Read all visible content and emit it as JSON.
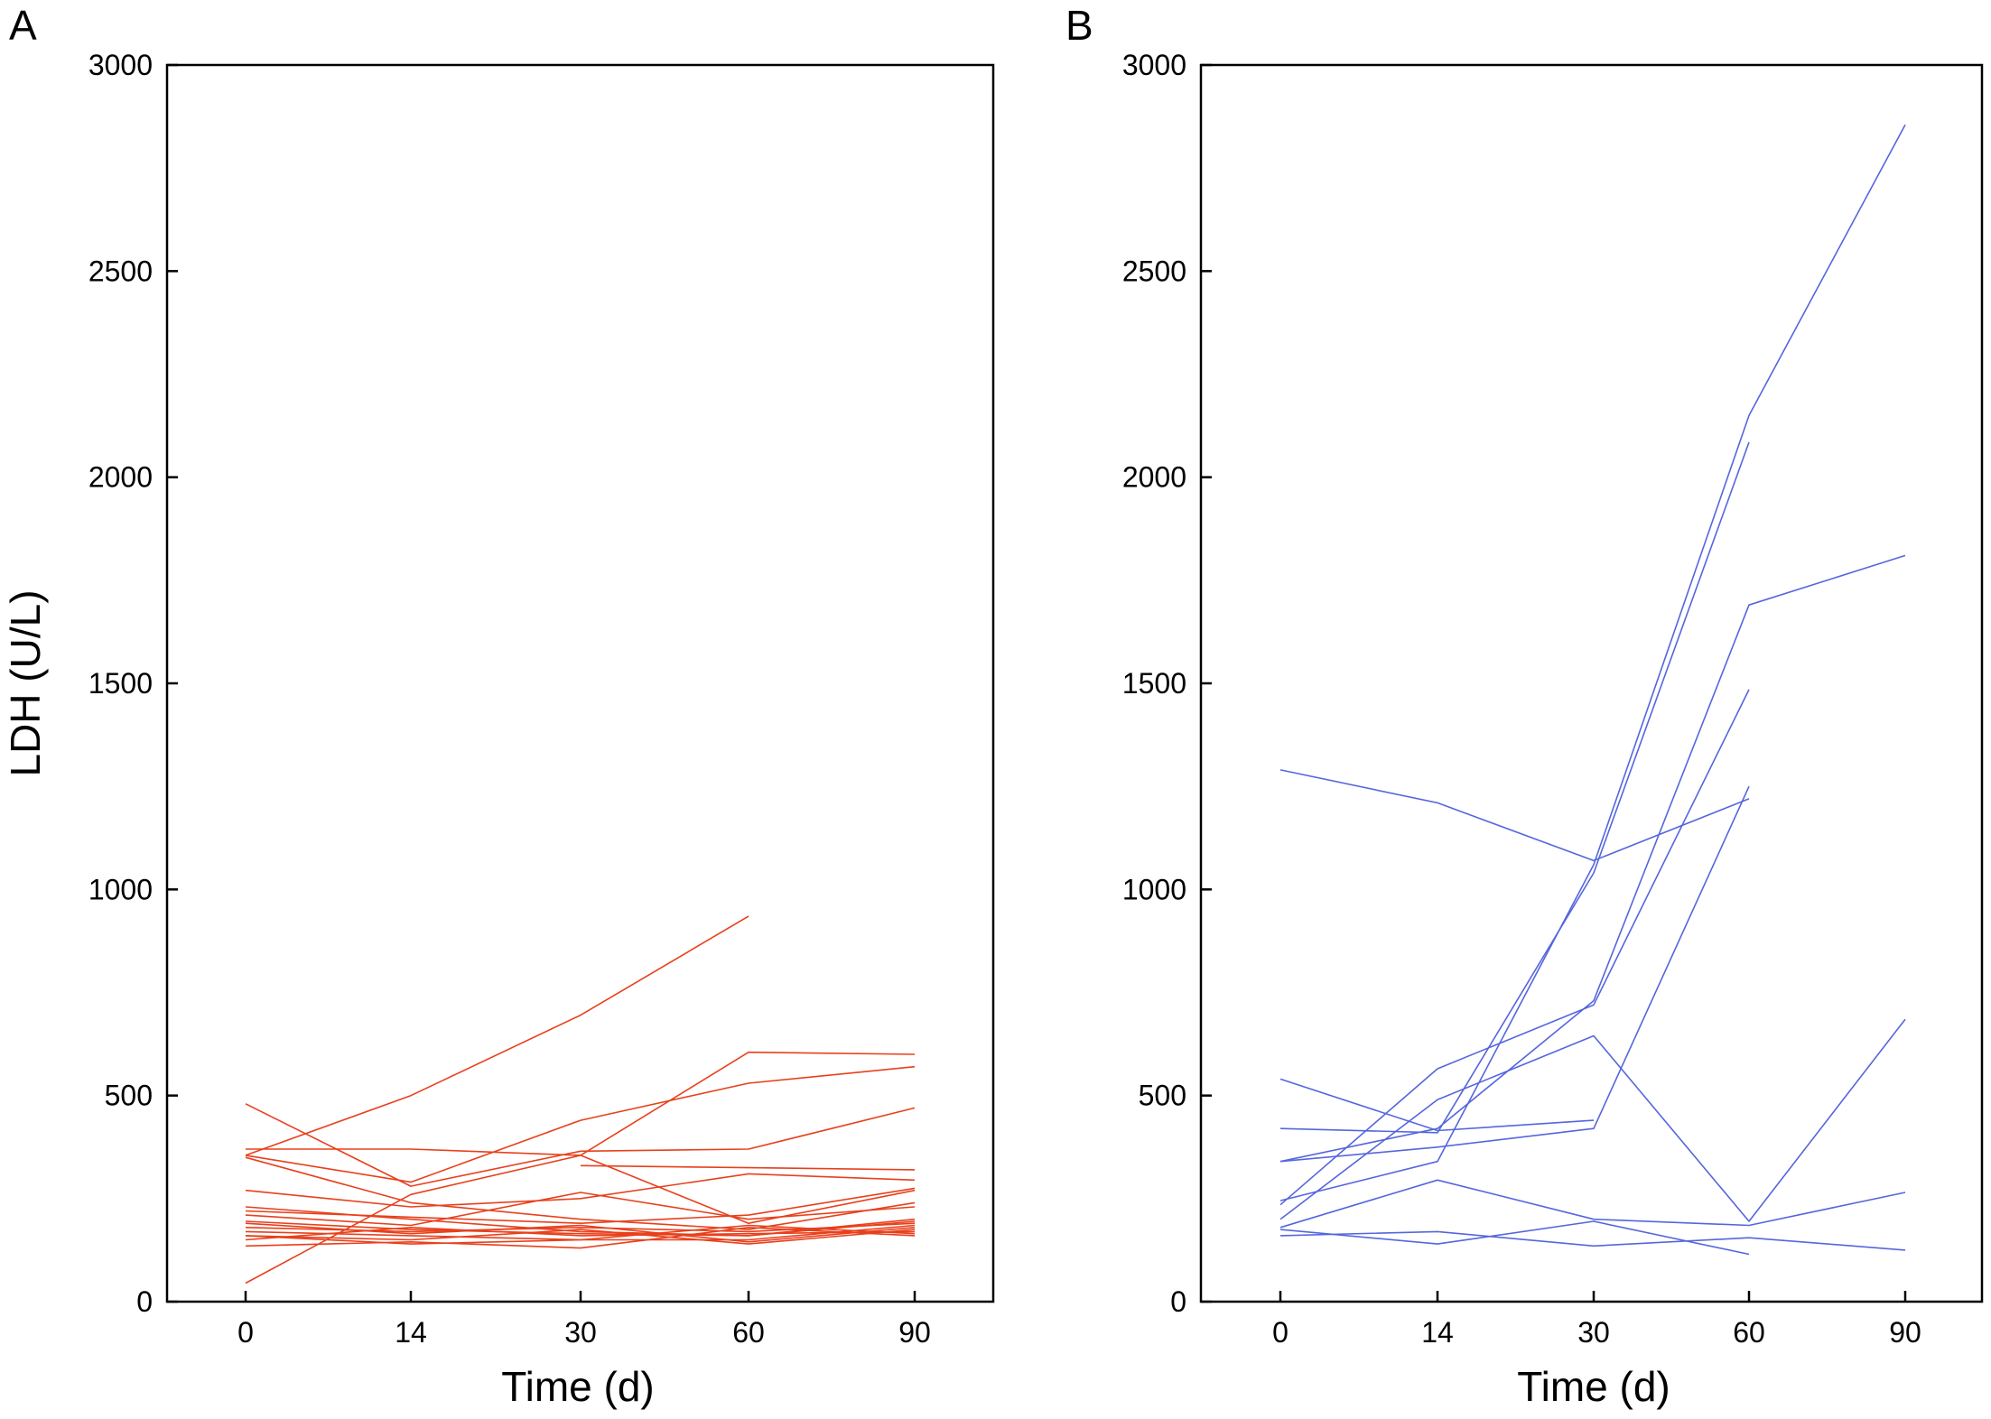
{
  "chart_data": [
    {
      "type": "line",
      "panel_label": "A",
      "xlabel": "Time (d)",
      "ylabel": "LDH (U/L)",
      "x_categories": [
        "0",
        "14",
        "30",
        "60",
        "90"
      ],
      "y_ticks": [
        "0",
        "500",
        "1000",
        "1500",
        "2000",
        "2500",
        "3000"
      ],
      "ylim": [
        0,
        3000
      ],
      "grid": false,
      "color": "#e8401c",
      "series": [
        {
          "x": [
            "0",
            "14",
            "30",
            "60"
          ],
          "y": [
            355,
            500,
            695,
            935
          ]
        },
        {
          "x": [
            "0",
            "14",
            "30",
            "60",
            "90"
          ],
          "y": [
            370,
            370,
            355,
            605,
            600
          ]
        },
        {
          "x": [
            "0",
            "14",
            "30",
            "60",
            "90"
          ],
          "y": [
            355,
            290,
            440,
            530,
            570
          ]
        },
        {
          "x": [
            "0",
            "14",
            "30",
            "60",
            "90"
          ],
          "y": [
            480,
            280,
            365,
            370,
            470
          ]
        },
        {
          "x": [
            "30",
            "60",
            "90"
          ],
          "y": [
            330,
            325,
            320
          ]
        },
        {
          "x": [
            "0",
            "14",
            "30",
            "60",
            "90"
          ],
          "y": [
            270,
            230,
            250,
            310,
            295
          ]
        },
        {
          "x": [
            "0",
            "14",
            "30",
            "60",
            "90"
          ],
          "y": [
            45,
            260,
            355,
            190,
            270
          ]
        },
        {
          "x": [
            "0",
            "14",
            "30",
            "60",
            "90"
          ],
          "y": [
            350,
            240,
            200,
            175,
            240
          ]
        },
        {
          "x": [
            "0",
            "14",
            "30",
            "60",
            "90"
          ],
          "y": [
            220,
            205,
            190,
            210,
            275
          ]
        },
        {
          "x": [
            "0",
            "14",
            "30",
            "60",
            "90"
          ],
          "y": [
            210,
            185,
            265,
            200,
            230
          ]
        },
        {
          "x": [
            "0",
            "14",
            "30",
            "60",
            "90"
          ],
          "y": [
            195,
            175,
            165,
            160,
            200
          ]
        },
        {
          "x": [
            "0",
            "14",
            "30",
            "60",
            "90"
          ],
          "y": [
            180,
            170,
            180,
            170,
            190
          ]
        },
        {
          "x": [
            "0",
            "14",
            "30",
            "60",
            "90"
          ],
          "y": [
            170,
            160,
            150,
            150,
            185
          ]
        },
        {
          "x": [
            "0",
            "14",
            "30",
            "60",
            "90"
          ],
          "y": [
            160,
            150,
            175,
            140,
            175
          ]
        },
        {
          "x": [
            "0",
            "14",
            "30",
            "60",
            "90"
          ],
          "y": [
            150,
            180,
            160,
            165,
            170
          ]
        },
        {
          "x": [
            "0",
            "14",
            "30",
            "60",
            "90"
          ],
          "y": [
            135,
            145,
            130,
            180,
            160
          ]
        },
        {
          "x": [
            "0",
            "14",
            "30",
            "60",
            "90"
          ],
          "y": [
            230,
            200,
            170,
            160,
            195
          ]
        },
        {
          "x": [
            "0",
            "14",
            "30",
            "60",
            "90"
          ],
          "y": [
            190,
            165,
            185,
            145,
            180
          ]
        },
        {
          "x": [
            "0",
            "14",
            "30",
            "60",
            "90"
          ],
          "y": [
            160,
            140,
            150,
            185,
            165
          ]
        }
      ]
    },
    {
      "type": "line",
      "panel_label": "B",
      "xlabel": "Time (d)",
      "ylabel": "",
      "x_categories": [
        "0",
        "14",
        "30",
        "60",
        "90"
      ],
      "y_ticks": [
        "0",
        "500",
        "1000",
        "1500",
        "2000",
        "2500",
        "3000"
      ],
      "ylim": [
        0,
        3000
      ],
      "grid": false,
      "color": "#5566dd",
      "series": [
        {
          "x": [
            "0",
            "14",
            "30",
            "60",
            "90"
          ],
          "y": [
            245,
            340,
            1060,
            2150,
            2855
          ]
        },
        {
          "x": [
            "0",
            "14",
            "30",
            "60"
          ],
          "y": [
            420,
            410,
            1040,
            2085
          ]
        },
        {
          "x": [
            "0",
            "14",
            "30",
            "60",
            "90"
          ],
          "y": [
            340,
            420,
            730,
            1690,
            1810
          ]
        },
        {
          "x": [
            "0",
            "14",
            "30",
            "60"
          ],
          "y": [
            235,
            565,
            720,
            1485
          ]
        },
        {
          "x": [
            "0",
            "14",
            "30",
            "60"
          ],
          "y": [
            1290,
            1210,
            1070,
            1220
          ]
        },
        {
          "x": [
            "0",
            "14",
            "30",
            "60"
          ],
          "y": [
            340,
            375,
            420,
            1250
          ]
        },
        {
          "x": [
            "0",
            "14",
            "30"
          ],
          "y": [
            540,
            415,
            440
          ]
        },
        {
          "x": [
            "0",
            "14",
            "30",
            "60",
            "90"
          ],
          "y": [
            200,
            490,
            645,
            195,
            685
          ]
        },
        {
          "x": [
            "0",
            "14",
            "30",
            "60",
            "90"
          ],
          "y": [
            180,
            295,
            200,
            185,
            265
          ]
        },
        {
          "x": [
            "0",
            "14",
            "30",
            "60",
            "90"
          ],
          "y": [
            160,
            170,
            135,
            155,
            125
          ]
        },
        {
          "x": [
            "0",
            "14",
            "30",
            "60"
          ],
          "y": [
            175,
            140,
            195,
            115
          ]
        }
      ]
    }
  ]
}
